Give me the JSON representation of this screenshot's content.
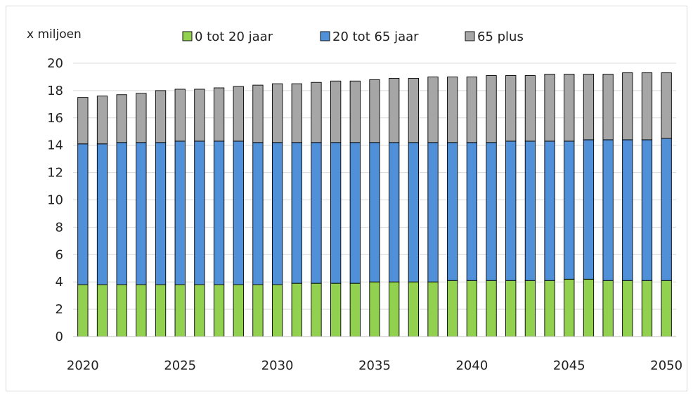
{
  "chart_data": {
    "type": "bar",
    "stacked": true,
    "unit_label": "x miljoen",
    "x": [
      2020,
      2021,
      2022,
      2023,
      2024,
      2025,
      2026,
      2027,
      2028,
      2029,
      2030,
      2031,
      2032,
      2033,
      2034,
      2035,
      2036,
      2037,
      2038,
      2039,
      2040,
      2041,
      2042,
      2043,
      2044,
      2045,
      2046,
      2047,
      2048,
      2049,
      2050
    ],
    "x_tick_labels": [
      "2020",
      "2025",
      "2030",
      "2035",
      "2040",
      "2045",
      "2050"
    ],
    "ylim": [
      0,
      20
    ],
    "y_ticks": [
      0,
      2,
      4,
      6,
      8,
      10,
      12,
      14,
      16,
      18,
      20
    ],
    "grid": true,
    "legend_position": "top",
    "series": [
      {
        "name": "0 tot 20 jaar",
        "color": "#92d050",
        "values": [
          3.8,
          3.8,
          3.8,
          3.8,
          3.8,
          3.8,
          3.8,
          3.8,
          3.8,
          3.8,
          3.8,
          3.9,
          3.9,
          3.9,
          3.9,
          4.0,
          4.0,
          4.0,
          4.0,
          4.1,
          4.1,
          4.1,
          4.1,
          4.1,
          4.1,
          4.2,
          4.2,
          4.1,
          4.1,
          4.1,
          4.1
        ]
      },
      {
        "name": "20 tot 65 jaar",
        "color": "#4f90d9",
        "values": [
          10.3,
          10.3,
          10.4,
          10.4,
          10.4,
          10.5,
          10.5,
          10.5,
          10.5,
          10.4,
          10.4,
          10.3,
          10.3,
          10.3,
          10.3,
          10.2,
          10.2,
          10.2,
          10.2,
          10.1,
          10.1,
          10.1,
          10.2,
          10.2,
          10.2,
          10.1,
          10.2,
          10.3,
          10.3,
          10.3,
          10.4
        ]
      },
      {
        "name": "65 plus",
        "color": "#a6a6a6",
        "values": [
          3.4,
          3.5,
          3.5,
          3.6,
          3.8,
          3.8,
          3.8,
          3.9,
          4.0,
          4.2,
          4.3,
          4.3,
          4.4,
          4.5,
          4.5,
          4.6,
          4.7,
          4.7,
          4.8,
          4.8,
          4.8,
          4.9,
          4.8,
          4.8,
          4.9,
          4.9,
          4.8,
          4.8,
          4.9,
          4.9,
          4.8
        ]
      }
    ]
  }
}
